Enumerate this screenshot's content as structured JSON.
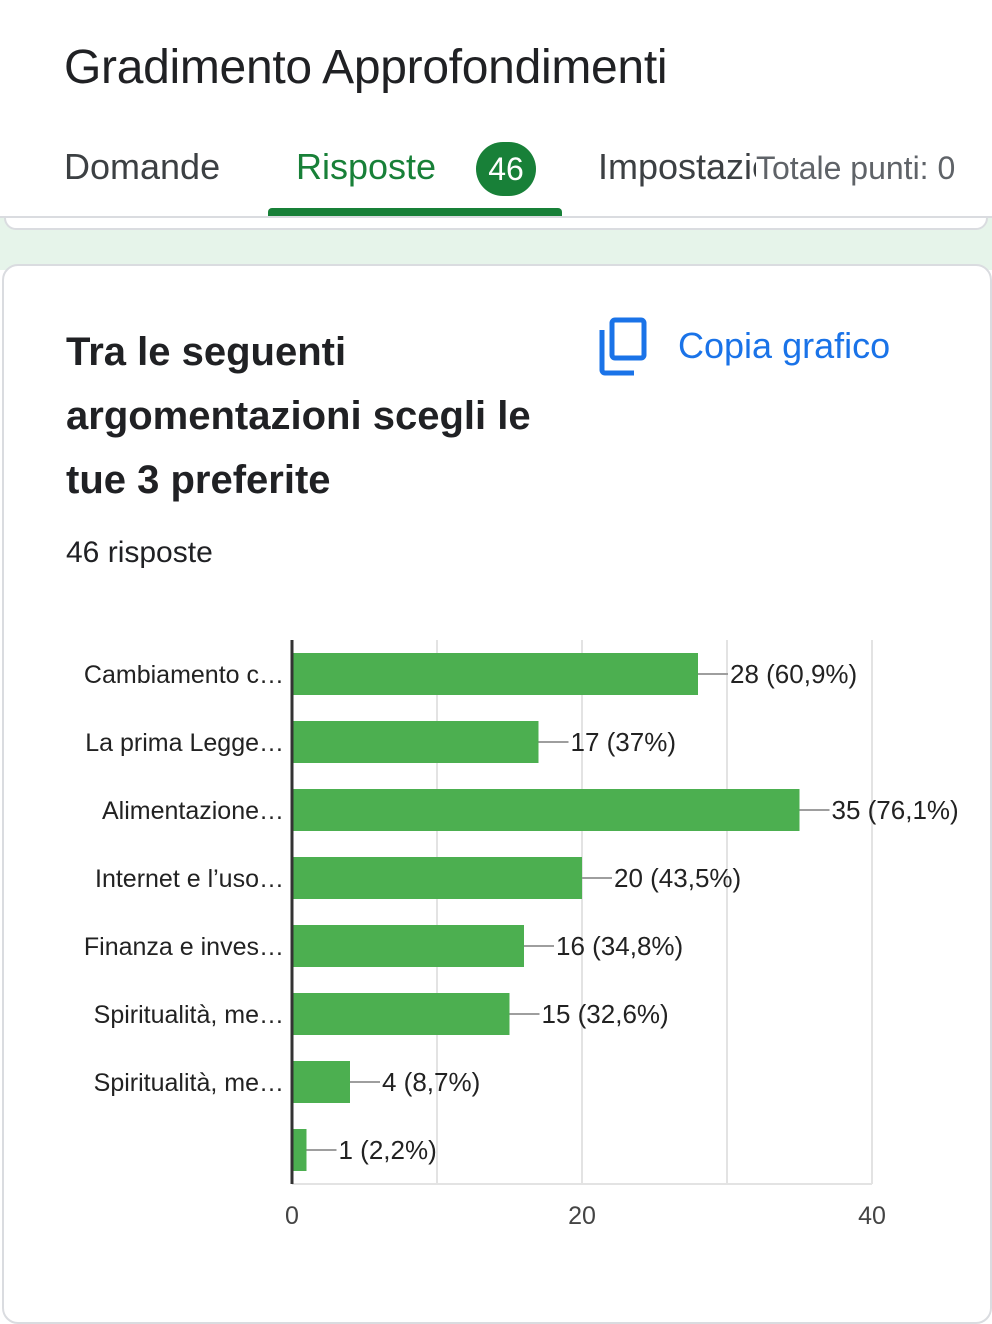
{
  "header": {
    "form_title": "Gradimento Approfondimenti",
    "tabs": {
      "domande": "Domande",
      "risposte": "Risposte",
      "impostazioni": "Impostazioni"
    },
    "responses_badge": "46",
    "total_points": "Totale punti: 0"
  },
  "question": {
    "title": "Tra le seguenti argomentazioni scegli le tue 3 preferite",
    "copy_label": "Copia grafico",
    "response_count": "46 risposte"
  },
  "colors": {
    "accent": "#188038",
    "bar": "#4caf50",
    "link": "#1a73e8"
  },
  "icons": {
    "copy": "copy-icon"
  },
  "chart_data": {
    "type": "bar",
    "orientation": "horizontal",
    "categories": [
      "Cambiamento c…",
      "La prima Legge…",
      "Alimentazione…",
      "Internet e l’uso…",
      "Finanza e inves…",
      "Spiritualità, me…",
      "Spiritualità, me…",
      ""
    ],
    "values": [
      28,
      17,
      35,
      20,
      16,
      15,
      4,
      1
    ],
    "data_labels": [
      "28 (60,9%)",
      "17 (37%)",
      "35 (76,1%)",
      "20 (43,5%)",
      "16 (34,8%)",
      "15 (32,6%)",
      "4 (8,7%)",
      "1 (2,2%)"
    ],
    "xlim": [
      0,
      40
    ],
    "ticks": [
      0,
      20,
      40
    ],
    "tick_labels": [
      "0",
      "20",
      "40"
    ],
    "grid": true,
    "legend": "none"
  }
}
